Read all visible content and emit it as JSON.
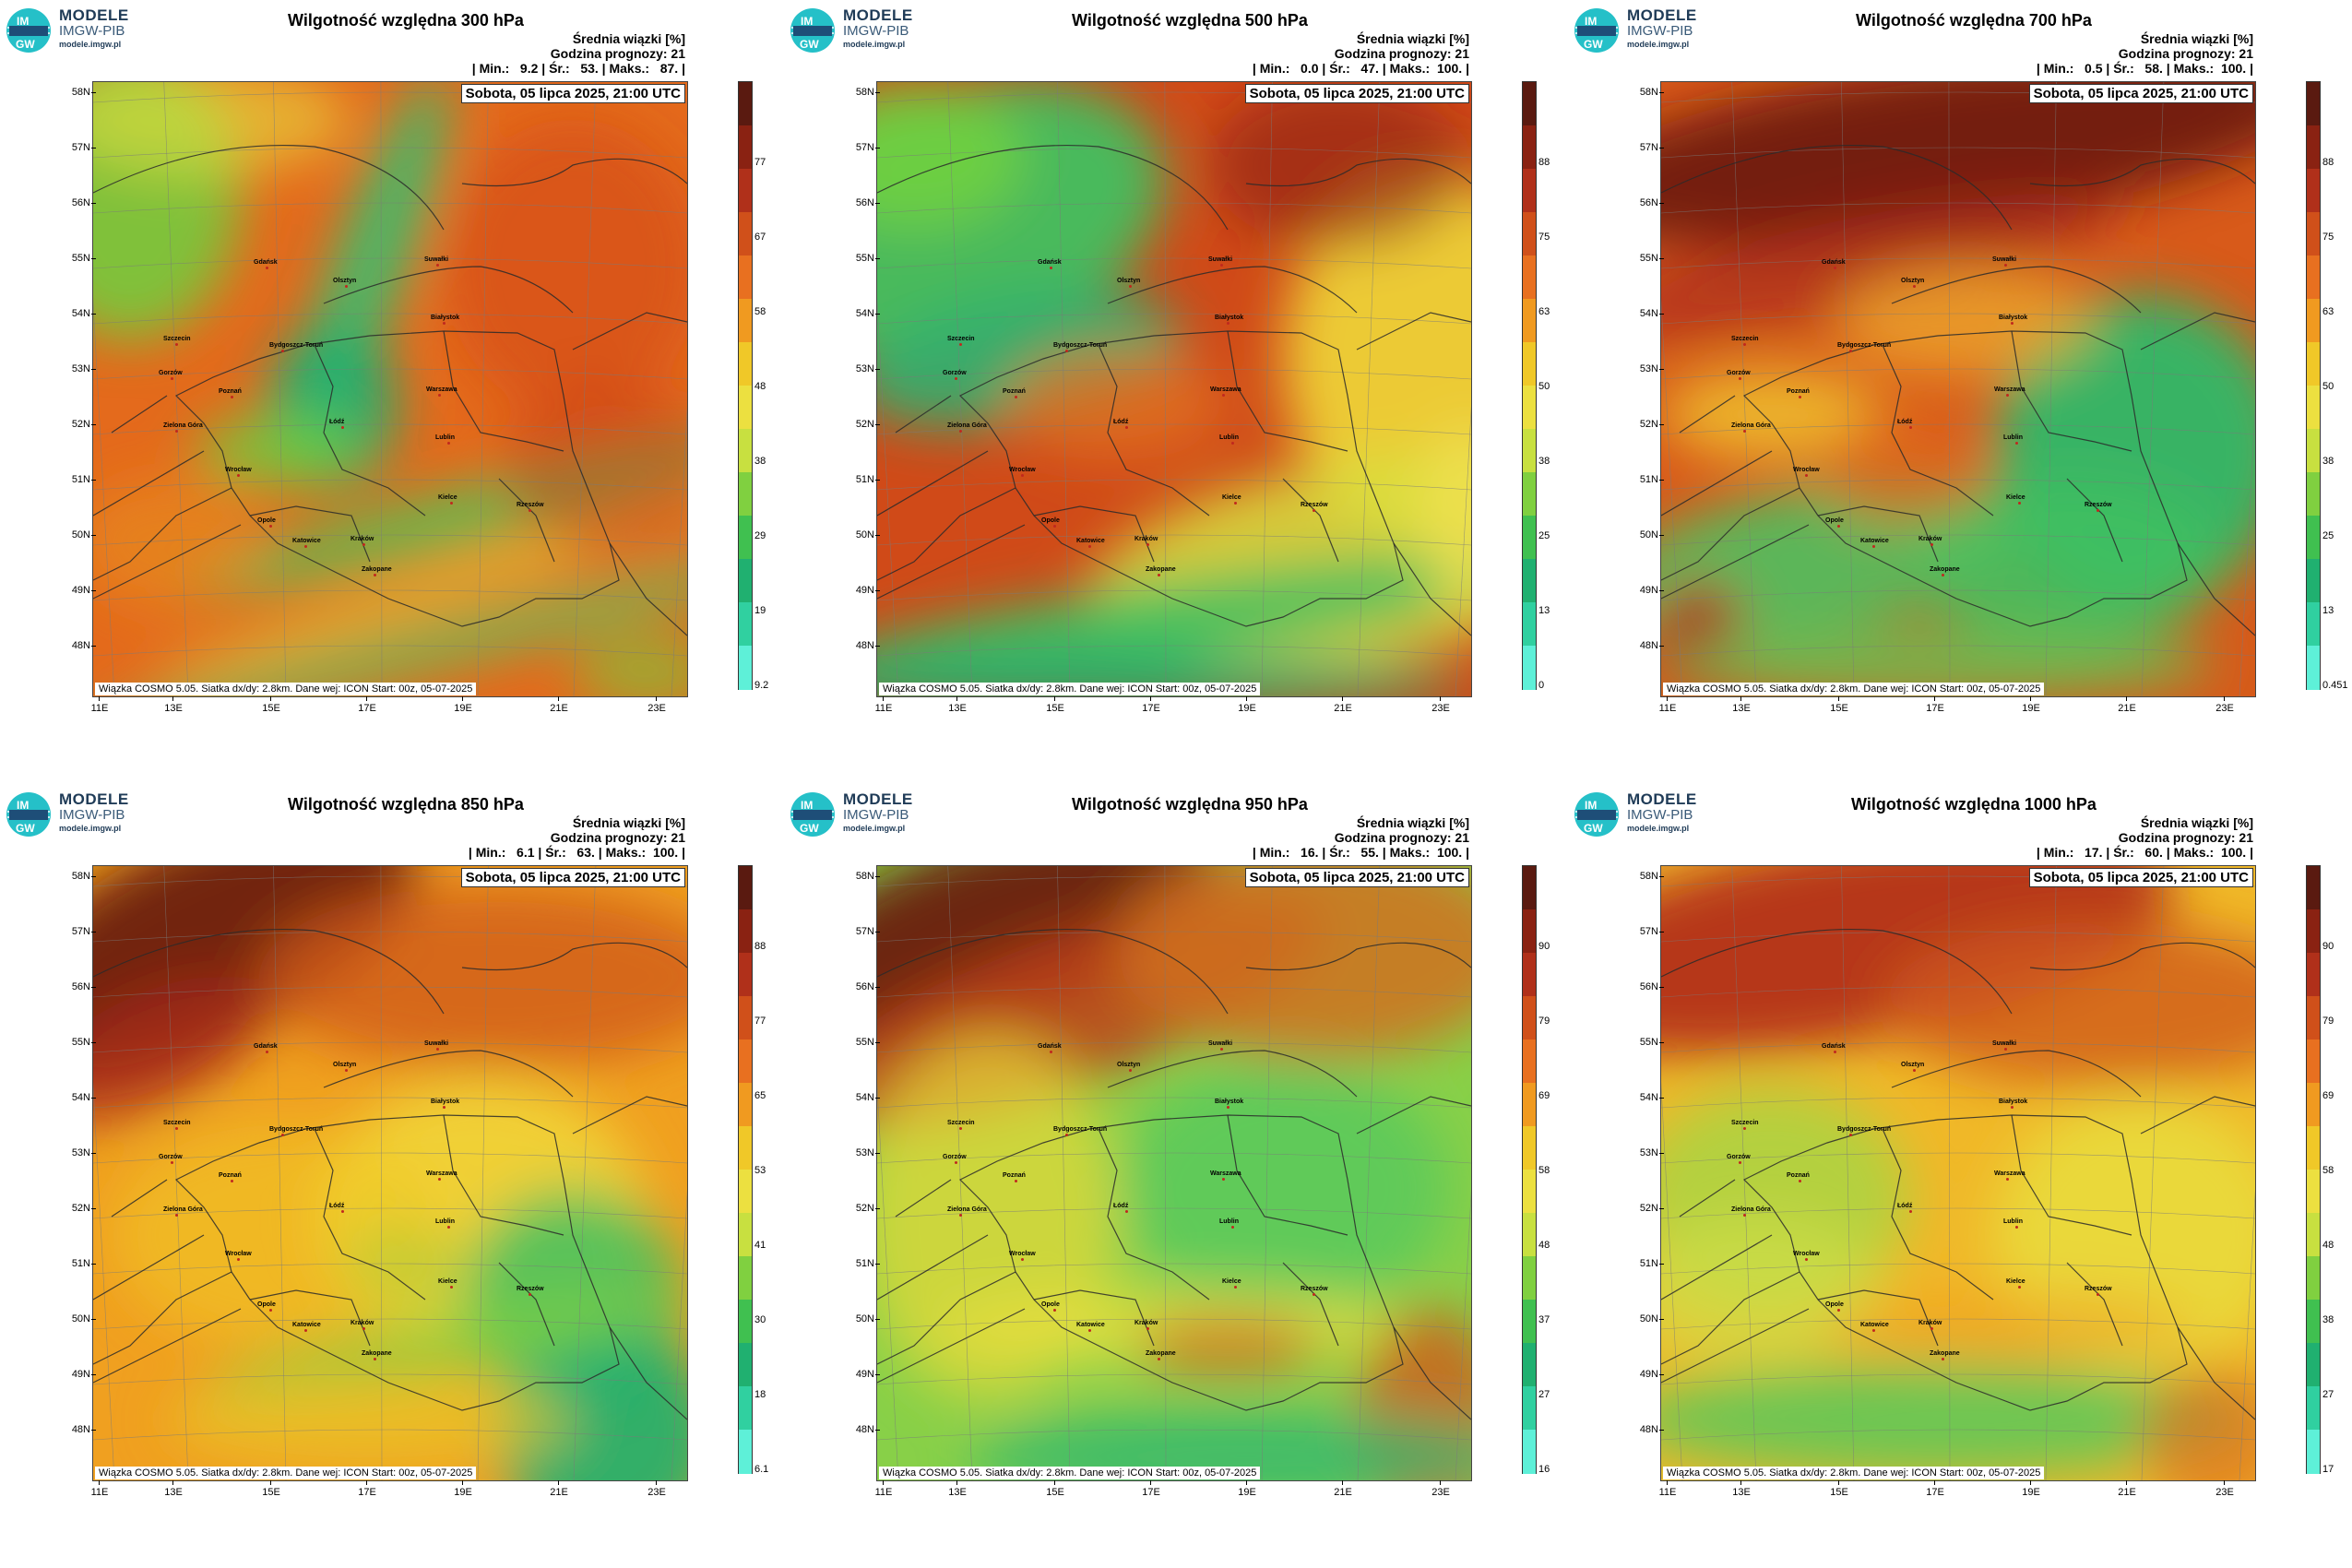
{
  "brand": {
    "name": "MODELE",
    "org": "IMGW-PIB",
    "url": "modele.imgw.pl",
    "logo_text_top": "IM",
    "logo_text_bottom": "GW"
  },
  "common": {
    "mean_label": "Średnia wiązki [%]",
    "forecast_hour": "Godzina prognozy: 21",
    "datetime": "Sobota, 05 lipca 2025, 21:00 UTC",
    "footnote": "Wiązka COSMO 5.05. Siatka dx/dy: 2.8km. Dane wej: ICON Start: 00z, 05-07-2025"
  },
  "lat_labels": [
    "58N",
    "57N",
    "56N",
    "55N",
    "54N",
    "53N",
    "52N",
    "51N",
    "50N",
    "49N",
    "48N"
  ],
  "lon_labels": [
    "11E",
    "13E",
    "15E",
    "17E",
    "19E",
    "21E",
    "23E"
  ],
  "cities": [
    "Gdańsk",
    "Olsztyn",
    "Suwałki",
    "Białystok",
    "Szczecin",
    "Bydgoszcz-Toruń",
    "Gorzów",
    "Poznań",
    "Warszawa",
    "Zielona Góra",
    "Łódź",
    "Lublin",
    "Wrocław",
    "Kielce",
    "Opole",
    "Rzeszów",
    "Katowice",
    "Kraków",
    "Zakopane"
  ],
  "colors": {
    "min": "#3ff0d8",
    "low": "#16b070",
    "mid_green": "#70d040",
    "yellow": "#f0e040",
    "orange": "#f07a10",
    "red": "#c0301a",
    "max": "#5a1a10",
    "city_dot": "#c0281e"
  },
  "panels": [
    {
      "title": "Wilgotność względna 300 hPa",
      "stats": "| Min.:   9.2 | Śr.:   53. | Maks.:   87. |",
      "min": 9.2,
      "mean": 53,
      "max": 87,
      "cbar_ticks": [
        "77",
        "67",
        "58",
        "48",
        "38",
        "29",
        "19",
        "9.2"
      ]
    },
    {
      "title": "Wilgotność względna 500 hPa",
      "stats": "| Min.:   0.0 | Śr.:   47. | Maks.:  100. |",
      "min": 0.0,
      "mean": 47,
      "max": 100,
      "cbar_ticks": [
        "88",
        "75",
        "63",
        "50",
        "38",
        "25",
        "13",
        "0"
      ]
    },
    {
      "title": "Wilgotność względna 700 hPa",
      "stats": "| Min.:   0.5 | Śr.:   58. | Maks.:  100. |",
      "min": 0.5,
      "mean": 58,
      "max": 100,
      "cbar_ticks": [
        "88",
        "75",
        "63",
        "50",
        "38",
        "25",
        "13",
        "0.451"
      ]
    },
    {
      "title": "Wilgotność względna 850 hPa",
      "stats": "| Min.:   6.1 | Śr.:   63. | Maks.:  100. |",
      "min": 6.1,
      "mean": 63,
      "max": 100,
      "cbar_ticks": [
        "88",
        "77",
        "65",
        "53",
        "41",
        "30",
        "18",
        "6.1"
      ]
    },
    {
      "title": "Wilgotność względna 950 hPa",
      "stats": "| Min.:   16. | Śr.:   55. | Maks.:  100. |",
      "min": 16,
      "mean": 55,
      "max": 100,
      "cbar_ticks": [
        "90",
        "79",
        "69",
        "58",
        "48",
        "37",
        "27",
        "16"
      ]
    },
    {
      "title": "Wilgotność względna 1000 hPa",
      "stats": "| Min.:   17. | Śr.:   60. | Maks.:  100. |",
      "min": 17,
      "mean": 60,
      "max": 100,
      "cbar_ticks": [
        "90",
        "79",
        "69",
        "58",
        "48",
        "38",
        "27",
        "17"
      ]
    }
  ]
}
